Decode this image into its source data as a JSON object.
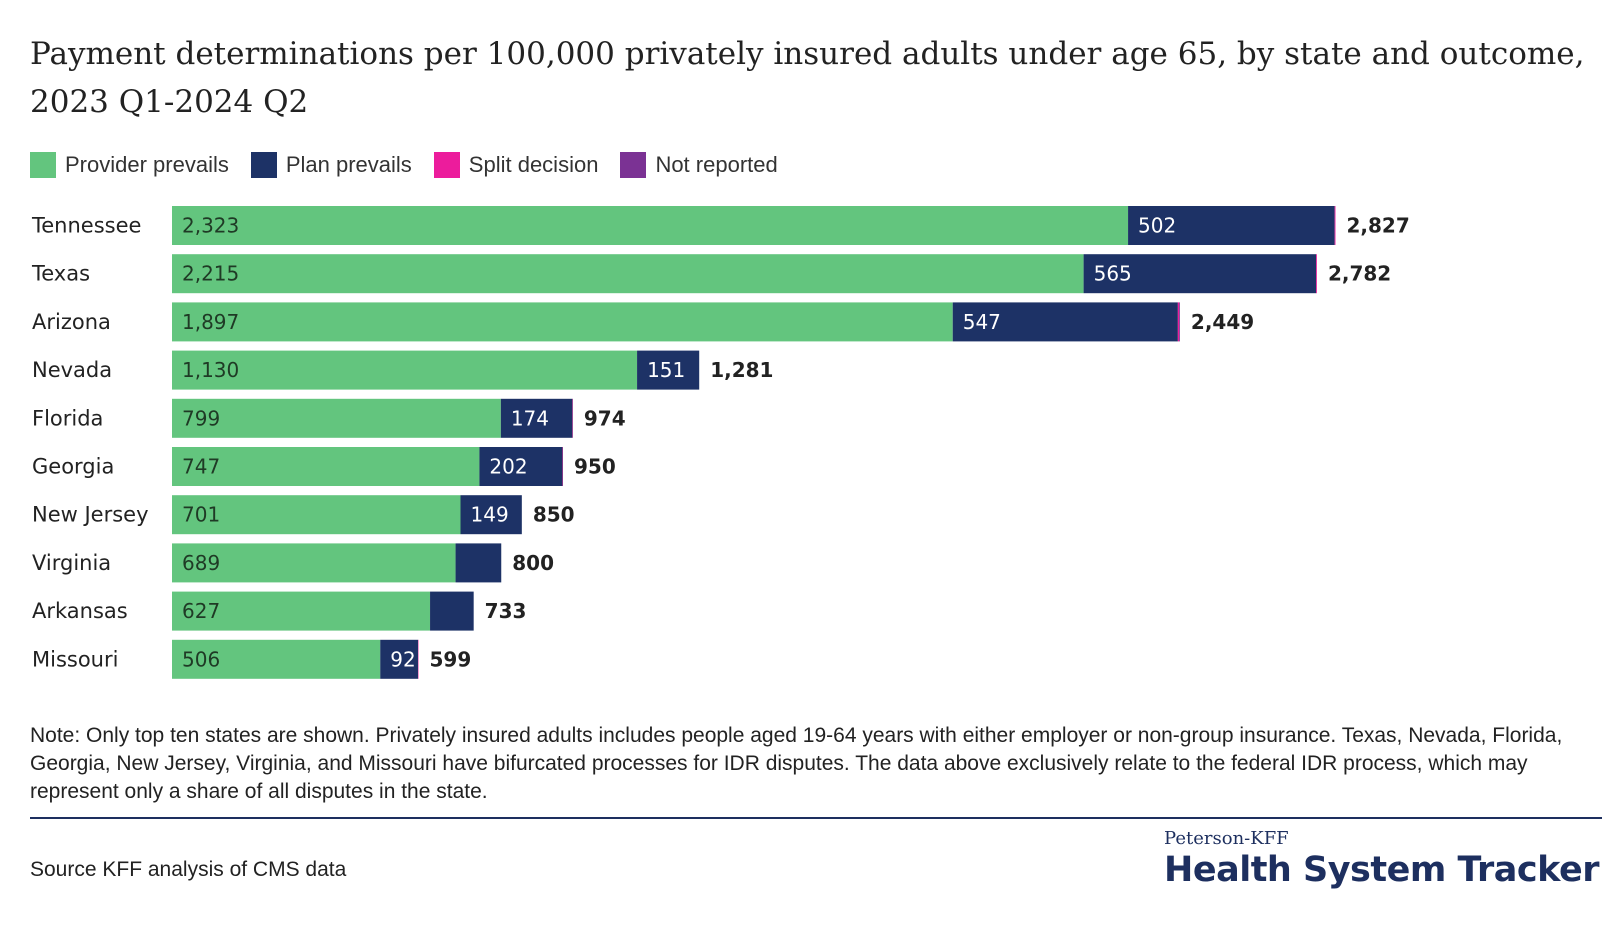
{
  "chart_data": {
    "type": "bar",
    "orientation": "horizontal",
    "stacked": true,
    "title": "Payment determinations per 100,000 privately insured adults under age 65, by state and outcome, 2023 Q1-2024 Q2",
    "categories": [
      "Tennessee",
      "Texas",
      "Arizona",
      "Nevada",
      "Florida",
      "Georgia",
      "New Jersey",
      "Virginia",
      "Arkansas",
      "Missouri"
    ],
    "series": [
      {
        "name": "Provider prevails",
        "color": "#63c57e",
        "values": [
          2323,
          2215,
          1897,
          1130,
          799,
          747,
          701,
          689,
          627,
          506
        ],
        "show_labels": [
          true,
          true,
          true,
          true,
          true,
          true,
          true,
          true,
          true,
          true
        ]
      },
      {
        "name": "Plan prevails",
        "color": "#1d3266",
        "values": [
          502,
          565,
          547,
          151,
          174,
          202,
          149,
          111,
          106,
          92
        ],
        "show_labels": [
          true,
          true,
          true,
          true,
          true,
          true,
          true,
          false,
          false,
          true
        ]
      },
      {
        "name": "Split decision",
        "color": "#ec1c9c",
        "values": [
          2,
          2,
          3,
          0,
          1,
          1,
          0,
          0,
          0,
          1
        ],
        "show_labels": [
          false,
          false,
          false,
          false,
          false,
          false,
          false,
          false,
          false,
          false
        ]
      },
      {
        "name": "Not reported",
        "color": "#7b3294",
        "values": [
          0,
          0,
          2,
          0,
          0,
          0,
          0,
          0,
          0,
          0
        ],
        "show_labels": [
          false,
          false,
          false,
          false,
          false,
          false,
          false,
          false,
          false,
          false
        ]
      }
    ],
    "totals": [
      2827,
      2782,
      2449,
      1281,
      974,
      950,
      850,
      800,
      733,
      599
    ],
    "xlim": [
      0,
      3200
    ],
    "legend_position": "top-left",
    "grid": false
  },
  "note": "Note: Only top ten states are shown. Privately insured adults includes people aged 19-64 years with either employer or non-group insurance. Texas, Nevada, Florida, Georgia, New Jersey, Virginia, and Missouri have bifurcated processes for IDR disputes. The data above exclusively relate to the federal IDR process, which may represent only a share of all disputes in the state.",
  "source": "Source KFF analysis of CMS data",
  "brand": {
    "small": "Peterson-KFF",
    "large": "Health System Tracker"
  }
}
